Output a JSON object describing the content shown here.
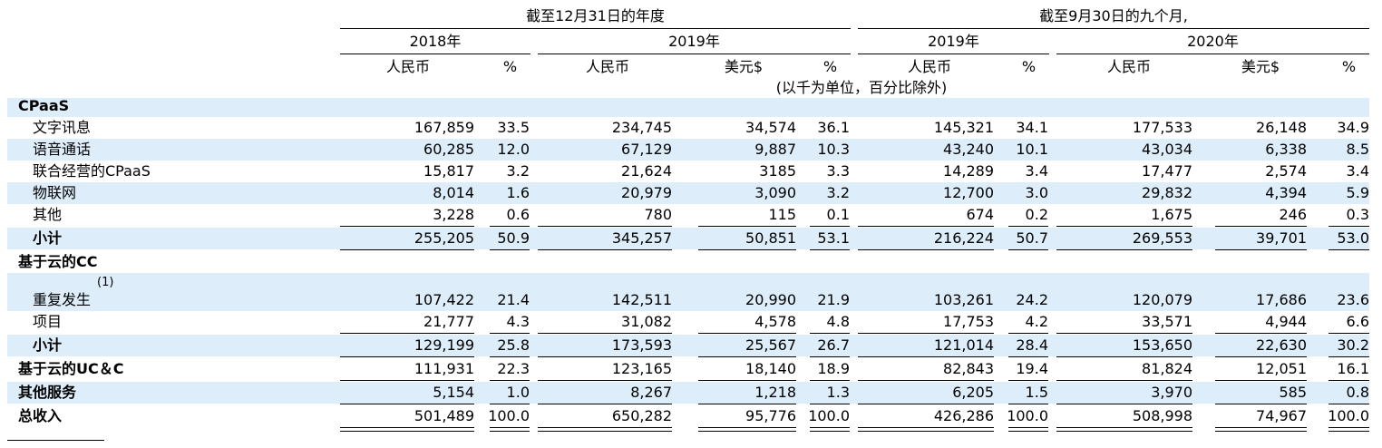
{
  "header": {
    "period_full_year": "截至12月31日的年度",
    "period_nine_months": "截至9月30日的九个月,",
    "years": [
      "2018年",
      "2019年",
      "2019年",
      "2020年"
    ],
    "currency_rmb": "人民币",
    "currency_usd": "美元$",
    "percent": "%",
    "unit_note": "(以千为单位，百分比除外)"
  },
  "rows": [
    {
      "label": "CPaaS",
      "values": []
    },
    {
      "label": "文字讯息",
      "values": [
        "167,859",
        "33.5",
        "234,745",
        "34,574",
        "36.1",
        "145,321",
        "34.1",
        "177,533",
        "26,148",
        "34.9"
      ]
    },
    {
      "label": "语音通话",
      "values": [
        "60,285",
        "12.0",
        "67,129",
        "9,887",
        "10.3",
        "43,240",
        "10.1",
        "43,034",
        "6,338",
        "8.5"
      ]
    },
    {
      "label": "联合经营的CPaaS",
      "values": [
        "15,817",
        "3.2",
        "21,624",
        "3185",
        "3.3",
        "14,289",
        "3.4",
        "17,477",
        "2,574",
        "3.4"
      ]
    },
    {
      "label": "物联网",
      "values": [
        "8,014",
        "1.6",
        "20,979",
        "3,090",
        "3.2",
        "12,700",
        "3.0",
        "29,832",
        "4,394",
        "5.9"
      ]
    },
    {
      "label": "其他",
      "values": [
        "3,228",
        "0.6",
        "780",
        "115",
        "0.1",
        "674",
        "0.2",
        "1,675",
        "246",
        "0.3"
      ]
    },
    {
      "label": "小计",
      "values": [
        "255,205",
        "50.9",
        "345,257",
        "50,851",
        "53.1",
        "216,224",
        "50.7",
        "269,553",
        "39,701",
        "53.0"
      ]
    },
    {
      "label": "基于云的CC",
      "values": []
    },
    {
      "label": "重复发生",
      "footnote": "(1)",
      "values": [
        "107,422",
        "21.4",
        "142,511",
        "20,990",
        "21.9",
        "103,261",
        "24.2",
        "120,079",
        "17,686",
        "23.6"
      ]
    },
    {
      "label": "项目",
      "values": [
        "21,777",
        "4.3",
        "31,082",
        "4,578",
        "4.8",
        "17,753",
        "4.2",
        "33,571",
        "4,944",
        "6.6"
      ]
    },
    {
      "label": "小计",
      "values": [
        "129,199",
        "25.8",
        "173,593",
        "25,567",
        "26.7",
        "121,014",
        "28.4",
        "153,650",
        "22,630",
        "30.2"
      ]
    },
    {
      "label": "基于云的UC＆C",
      "values": [
        "111,931",
        "22.3",
        "123,165",
        "18,140",
        "18.9",
        "82,843",
        "19.4",
        "81,824",
        "12,051",
        "16.1"
      ]
    },
    {
      "label": "其他服务",
      "values": [
        "5,154",
        "1.0",
        "8,267",
        "1,218",
        "1.3",
        "6,205",
        "1.5",
        "3,970",
        "585",
        "0.8"
      ]
    },
    {
      "label": "总收入",
      "values": [
        "501,489",
        "100.0",
        "650,282",
        "95,776",
        "100.0",
        "426,286",
        "100.0",
        "508,998",
        "74,967",
        "100.0"
      ]
    }
  ]
}
